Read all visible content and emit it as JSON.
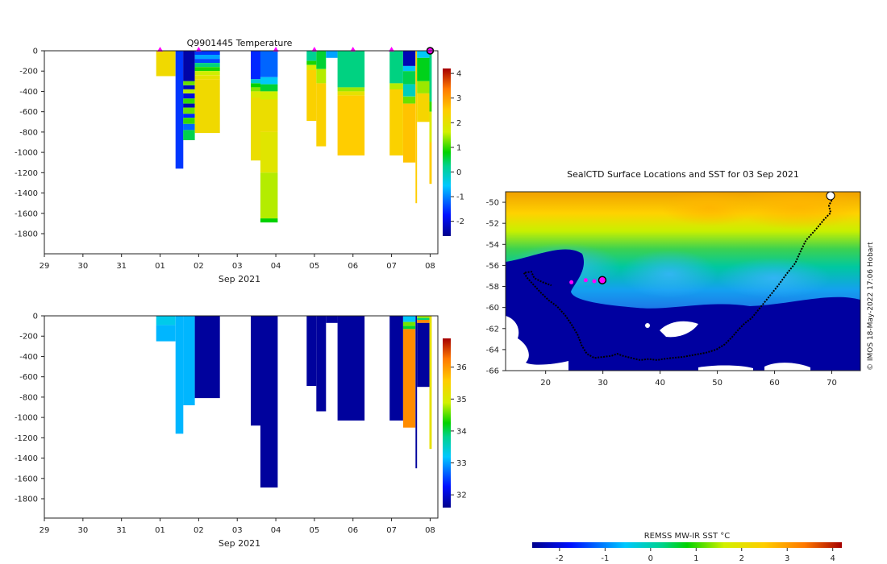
{
  "chart_data": [
    {
      "type": "heatmap",
      "subtype": "depth-time profile",
      "title": "Q9901445  Temperature",
      "xlabel": "Sep 2021",
      "ylabel": "",
      "x_tick_labels": [
        "29",
        "30",
        "31",
        "01",
        "02",
        "03",
        "04",
        "05",
        "06",
        "07",
        "08"
      ],
      "x_tick_days": [
        -2,
        -1,
        0,
        1,
        2,
        3,
        4,
        5,
        6,
        7,
        8
      ],
      "xlim": [
        -2.0,
        8.2
      ],
      "y_ticks": [
        0,
        -200,
        -400,
        -600,
        -800,
        -1000,
        -1200,
        -1400,
        -1600,
        -1800
      ],
      "ylim": [
        -2000,
        0
      ],
      "colorbar": {
        "min": -2.6,
        "max": 4.2,
        "ticks": [
          4,
          3,
          2,
          1,
          0,
          -1,
          -2
        ]
      },
      "profile_markers_day": [
        1.0,
        2.0,
        4.0,
        5.0,
        6.0,
        7.0
      ],
      "current_marker_day": 8.0,
      "profiles": [
        {
          "x0": 0.9,
          "x1": 1.4,
          "max_depth": 250,
          "layers": [
            [
              0,
              250,
              2.2
            ]
          ]
        },
        {
          "x0": 1.4,
          "x1": 1.6,
          "max_depth": 1160,
          "layers": [
            [
              0,
              1160,
              -1.5
            ]
          ]
        },
        {
          "x0": 1.6,
          "x1": 1.9,
          "max_depth": 880,
          "layers": [
            [
              0,
              300,
              -2.4
            ],
            [
              300,
              340,
              1.2
            ],
            [
              340,
              380,
              -2.2
            ],
            [
              380,
              420,
              1.5
            ],
            [
              420,
              470,
              -2.0
            ],
            [
              470,
              520,
              1.0
            ],
            [
              520,
              560,
              -2.3
            ],
            [
              560,
              620,
              1.2
            ],
            [
              620,
              660,
              -1.6
            ],
            [
              660,
              720,
              1.0
            ],
            [
              720,
              780,
              -1.2
            ],
            [
              780,
              880,
              0.5
            ]
          ]
        },
        {
          "x0": 1.9,
          "x1": 2.55,
          "max_depth": 810,
          "layers": [
            [
              0,
              40,
              -1.5
            ],
            [
              40,
              80,
              -0.8
            ],
            [
              80,
              120,
              -1.4
            ],
            [
              120,
              160,
              0.3
            ],
            [
              160,
              200,
              0.9
            ],
            [
              200,
              240,
              1.6
            ],
            [
              240,
              280,
              2.0
            ],
            [
              280,
              810,
              2.2
            ]
          ]
        },
        {
          "x0": 3.35,
          "x1": 3.6,
          "max_depth": 1080,
          "layers": [
            [
              0,
              280,
              -1.6
            ],
            [
              280,
              320,
              -0.2
            ],
            [
              320,
              360,
              0.8
            ],
            [
              360,
              400,
              1.3
            ],
            [
              400,
              460,
              1.8
            ],
            [
              460,
              1080,
              2.1
            ]
          ]
        },
        {
          "x0": 3.6,
          "x1": 4.05,
          "max_depth": 1690,
          "layers": [
            [
              0,
              260,
              -1.2
            ],
            [
              260,
              330,
              -0.5
            ],
            [
              330,
              400,
              0.6
            ],
            [
              400,
              480,
              1.6
            ],
            [
              480,
              800,
              2.1
            ],
            [
              800,
              1200,
              1.9
            ],
            [
              1200,
              1650,
              1.5
            ],
            [
              1650,
              1690,
              0.8
            ]
          ]
        },
        {
          "x0": 4.8,
          "x1": 5.05,
          "max_depth": 690,
          "layers": [
            [
              0,
              100,
              0.2
            ],
            [
              100,
              140,
              0.9
            ],
            [
              140,
              190,
              1.7
            ],
            [
              190,
              690,
              2.4
            ]
          ]
        },
        {
          "x0": 5.05,
          "x1": 5.3,
          "max_depth": 940,
          "layers": [
            [
              0,
              180,
              0.6
            ],
            [
              180,
              320,
              1.5
            ],
            [
              320,
              940,
              2.4
            ]
          ]
        },
        {
          "x0": 5.3,
          "x1": 5.6,
          "max_depth": 70,
          "layers": [
            [
              0,
              70,
              -0.8
            ]
          ]
        },
        {
          "x0": 5.6,
          "x1": 6.3,
          "max_depth": 1030,
          "layers": [
            [
              0,
              360,
              0.3
            ],
            [
              360,
              400,
              1.4
            ],
            [
              400,
              440,
              2.0
            ],
            [
              440,
              1030,
              2.5
            ]
          ]
        },
        {
          "x0": 6.95,
          "x1": 7.3,
          "max_depth": 1030,
          "layers": [
            [
              0,
              320,
              0.3
            ],
            [
              320,
              380,
              1.5
            ],
            [
              380,
              1030,
              2.4
            ]
          ]
        },
        {
          "x0": 7.3,
          "x1": 7.62,
          "max_depth": 1100,
          "layers": [
            [
              0,
              150,
              -2.3
            ],
            [
              150,
              200,
              -0.6
            ],
            [
              200,
              330,
              0.5
            ],
            [
              330,
              450,
              -0.1
            ],
            [
              450,
              520,
              1.2
            ],
            [
              520,
              1100,
              2.6
            ]
          ]
        },
        {
          "x0": 7.62,
          "x1": 7.66,
          "max_depth": 1500,
          "layers": [
            [
              0,
              1500,
              2.5
            ]
          ]
        },
        {
          "x0": 7.66,
          "x1": 7.98,
          "max_depth": 700,
          "layers": [
            [
              0,
              70,
              -0.5
            ],
            [
              70,
              300,
              0.7
            ],
            [
              300,
              420,
              1.4
            ],
            [
              420,
              700,
              2.3
            ]
          ]
        },
        {
          "x0": 7.98,
          "x1": 8.04,
          "max_depth": 1310,
          "layers": [
            [
              0,
              500,
              0.3
            ],
            [
              500,
              600,
              1.0
            ],
            [
              600,
              900,
              1.8
            ],
            [
              900,
              1310,
              2.5
            ]
          ]
        }
      ]
    },
    {
      "type": "heatmap",
      "subtype": "depth-time profile",
      "title": "",
      "xlabel": "Sep 2021",
      "ylabel": "",
      "x_tick_labels": [
        "29",
        "30",
        "31",
        "01",
        "02",
        "03",
        "04",
        "05",
        "06",
        "07",
        "08"
      ],
      "x_tick_days": [
        -2,
        -1,
        0,
        1,
        2,
        3,
        4,
        5,
        6,
        7,
        8
      ],
      "xlim": [
        -2.0,
        8.2
      ],
      "y_ticks": [
        0,
        -200,
        -400,
        -600,
        -800,
        -1000,
        -1200,
        -1400,
        -1600,
        -1800
      ],
      "ylim": [
        -2000,
        0
      ],
      "colorbar": {
        "min": 31.6,
        "max": 36.9,
        "ticks": [
          36,
          35,
          34,
          33,
          32
        ]
      },
      "profiles": [
        {
          "x0": 0.9,
          "x1": 1.4,
          "max_depth": 250,
          "layers": [
            [
              0,
              90,
              33.3
            ],
            [
              90,
              250,
              33.1
            ]
          ]
        },
        {
          "x0": 1.4,
          "x1": 1.6,
          "max_depth": 1160,
          "layers": [
            [
              0,
              1160,
              33.1
            ]
          ]
        },
        {
          "x0": 1.6,
          "x1": 1.9,
          "max_depth": 880,
          "layers": [
            [
              0,
              880,
              33.1
            ]
          ]
        },
        {
          "x0": 1.9,
          "x1": 2.55,
          "max_depth": 810,
          "layers": [
            [
              0,
              810,
              31.7
            ]
          ]
        },
        {
          "x0": 3.35,
          "x1": 3.6,
          "max_depth": 1080,
          "layers": [
            [
              0,
              1080,
              31.7
            ]
          ]
        },
        {
          "x0": 3.6,
          "x1": 4.05,
          "max_depth": 1690,
          "layers": [
            [
              0,
              1690,
              31.7
            ]
          ]
        },
        {
          "x0": 4.8,
          "x1": 5.05,
          "max_depth": 690,
          "layers": [
            [
              0,
              690,
              31.7
            ]
          ]
        },
        {
          "x0": 5.05,
          "x1": 5.3,
          "max_depth": 940,
          "layers": [
            [
              0,
              940,
              31.7
            ]
          ]
        },
        {
          "x0": 5.3,
          "x1": 5.6,
          "max_depth": 70,
          "layers": [
            [
              0,
              70,
              31.7
            ]
          ]
        },
        {
          "x0": 5.6,
          "x1": 6.3,
          "max_depth": 1030,
          "layers": [
            [
              0,
              1030,
              31.7
            ]
          ]
        },
        {
          "x0": 6.95,
          "x1": 7.3,
          "max_depth": 1030,
          "layers": [
            [
              0,
              1030,
              31.7
            ]
          ]
        },
        {
          "x0": 7.3,
          "x1": 7.62,
          "max_depth": 1100,
          "layers": [
            [
              0,
              60,
              33.2
            ],
            [
              60,
              100,
              34.6
            ],
            [
              100,
              130,
              34.1
            ],
            [
              130,
              1100,
              36.1
            ]
          ]
        },
        {
          "x0": 7.62,
          "x1": 7.66,
          "max_depth": 1500,
          "layers": [
            [
              0,
              1500,
              31.7
            ]
          ]
        },
        {
          "x0": 7.66,
          "x1": 7.98,
          "max_depth": 700,
          "layers": [
            [
              0,
              20,
              34.8
            ],
            [
              20,
              40,
              33.9
            ],
            [
              40,
              70,
              36.1
            ],
            [
              70,
              700,
              31.7
            ]
          ]
        },
        {
          "x0": 7.98,
          "x1": 8.04,
          "max_depth": 1310,
          "layers": [
            [
              0,
              1310,
              35.2
            ]
          ]
        }
      ]
    },
    {
      "type": "heatmap",
      "subtype": "map",
      "title": "SealCTD Surface Locations and SST for 03 Sep 2021",
      "xlim": [
        13,
        75
      ],
      "ylim": [
        -66,
        -49
      ],
      "x_ticks": [
        20,
        30,
        40,
        50,
        60,
        70
      ],
      "y_ticks": [
        -50,
        -52,
        -54,
        -56,
        -58,
        -60,
        -62,
        -64,
        -66
      ],
      "y_tick_labels": [
        "-50",
        "-52",
        "-54",
        "-56",
        "-58",
        "-60",
        "-62",
        "-64",
        "-66"
      ],
      "side_caption": "© IMOS 18-May-2022 17:06 Hobart",
      "colorbar_label": "REMSS MW-IR SST °C",
      "colorbar": {
        "min": -2.6,
        "max": 4.2,
        "ticks": [
          -2,
          -1,
          0,
          1,
          2,
          3,
          4
        ]
      },
      "track": [
        [
          70.0,
          -49.8
        ],
        [
          69.5,
          -50.3
        ],
        [
          69.8,
          -51.0
        ],
        [
          68.7,
          -51.6
        ],
        [
          67.2,
          -52.6
        ],
        [
          65.5,
          -53.6
        ],
        [
          64.6,
          -54.6
        ],
        [
          63.6,
          -55.8
        ],
        [
          62.1,
          -56.8
        ],
        [
          60.5,
          -58.0
        ],
        [
          59.0,
          -59.0
        ],
        [
          57.2,
          -60.2
        ],
        [
          56.0,
          -61.0
        ],
        [
          54.8,
          -61.5
        ],
        [
          53.7,
          -62.1
        ],
        [
          52.6,
          -62.8
        ],
        [
          51.3,
          -63.5
        ],
        [
          49.8,
          -64.0
        ],
        [
          48.0,
          -64.3
        ],
        [
          46.0,
          -64.5
        ],
        [
          44.0,
          -64.7
        ],
        [
          42.0,
          -64.8
        ],
        [
          40.5,
          -64.9
        ],
        [
          39.5,
          -65.0
        ],
        [
          38.0,
          -64.9
        ],
        [
          36.5,
          -65.0
        ],
        [
          35.0,
          -64.8
        ],
        [
          33.5,
          -64.6
        ],
        [
          32.5,
          -64.4
        ],
        [
          31.5,
          -64.6
        ],
        [
          30.0,
          -64.7
        ],
        [
          28.5,
          -64.8
        ],
        [
          27.2,
          -64.4
        ],
        [
          26.3,
          -63.6
        ],
        [
          25.6,
          -62.6
        ],
        [
          24.5,
          -61.6
        ],
        [
          23.5,
          -60.8
        ],
        [
          22.0,
          -59.9
        ],
        [
          20.5,
          -59.3
        ],
        [
          19.0,
          -58.5
        ],
        [
          17.8,
          -57.8
        ],
        [
          16.8,
          -57.2
        ],
        [
          16.2,
          -56.7
        ],
        [
          17.5,
          -56.6
        ],
        [
          18.0,
          -57.2
        ],
        [
          19.5,
          -57.6
        ],
        [
          21.0,
          -57.9
        ]
      ],
      "recent_points": [
        [
          24.5,
          -57.6
        ],
        [
          27.0,
          -57.4
        ],
        [
          28.5,
          -57.5
        ]
      ],
      "current_location": [
        29.9,
        -57.4
      ]
    }
  ]
}
